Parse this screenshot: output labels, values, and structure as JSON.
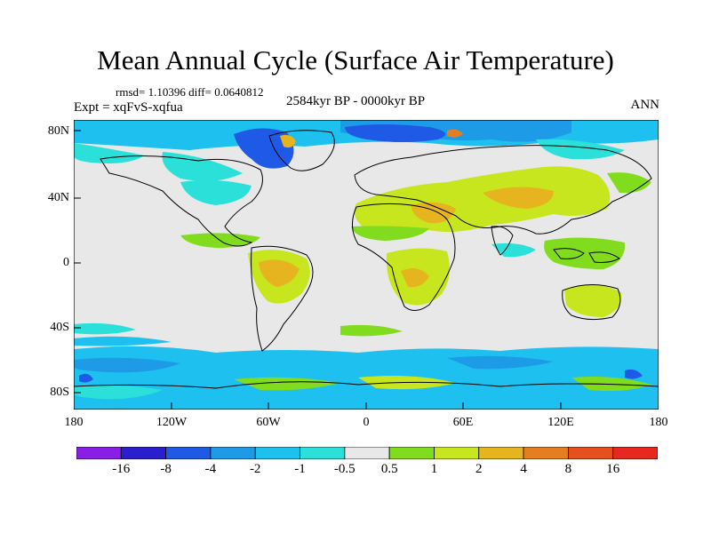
{
  "title": "Mean Annual Cycle (Surface Air Temperature)",
  "stats": "rmsd= 1.10396 diff= 0.0640812",
  "experiment": "Expt = xqFvS-xqfua",
  "period": "2584kyr BP - 0000kyr BP",
  "season": "ANN",
  "lat_labels": [
    "80N",
    "40N",
    "0",
    "40S",
    "80S"
  ],
  "lon_labels": [
    "180",
    "120W",
    "60W",
    "0",
    "60E",
    "120E",
    "180"
  ],
  "colorbar": {
    "labels": [
      "-16",
      "-8",
      "-4",
      "-2",
      "-1",
      "-0.5",
      "0.5",
      "1",
      "2",
      "4",
      "8",
      "16"
    ],
    "colors": [
      "#8a1ee6",
      "#2a1ecf",
      "#1e5ae6",
      "#1e9be6",
      "#1ec0f0",
      "#2ae0d8",
      "#e8e8e8",
      "#82dc1e",
      "#c8e61e",
      "#e6b41e",
      "#e67d1e",
      "#e6501e",
      "#e6281e"
    ]
  },
  "colors": {
    "land_outline": "#000000",
    "neutral": "#e8e8e8"
  }
}
